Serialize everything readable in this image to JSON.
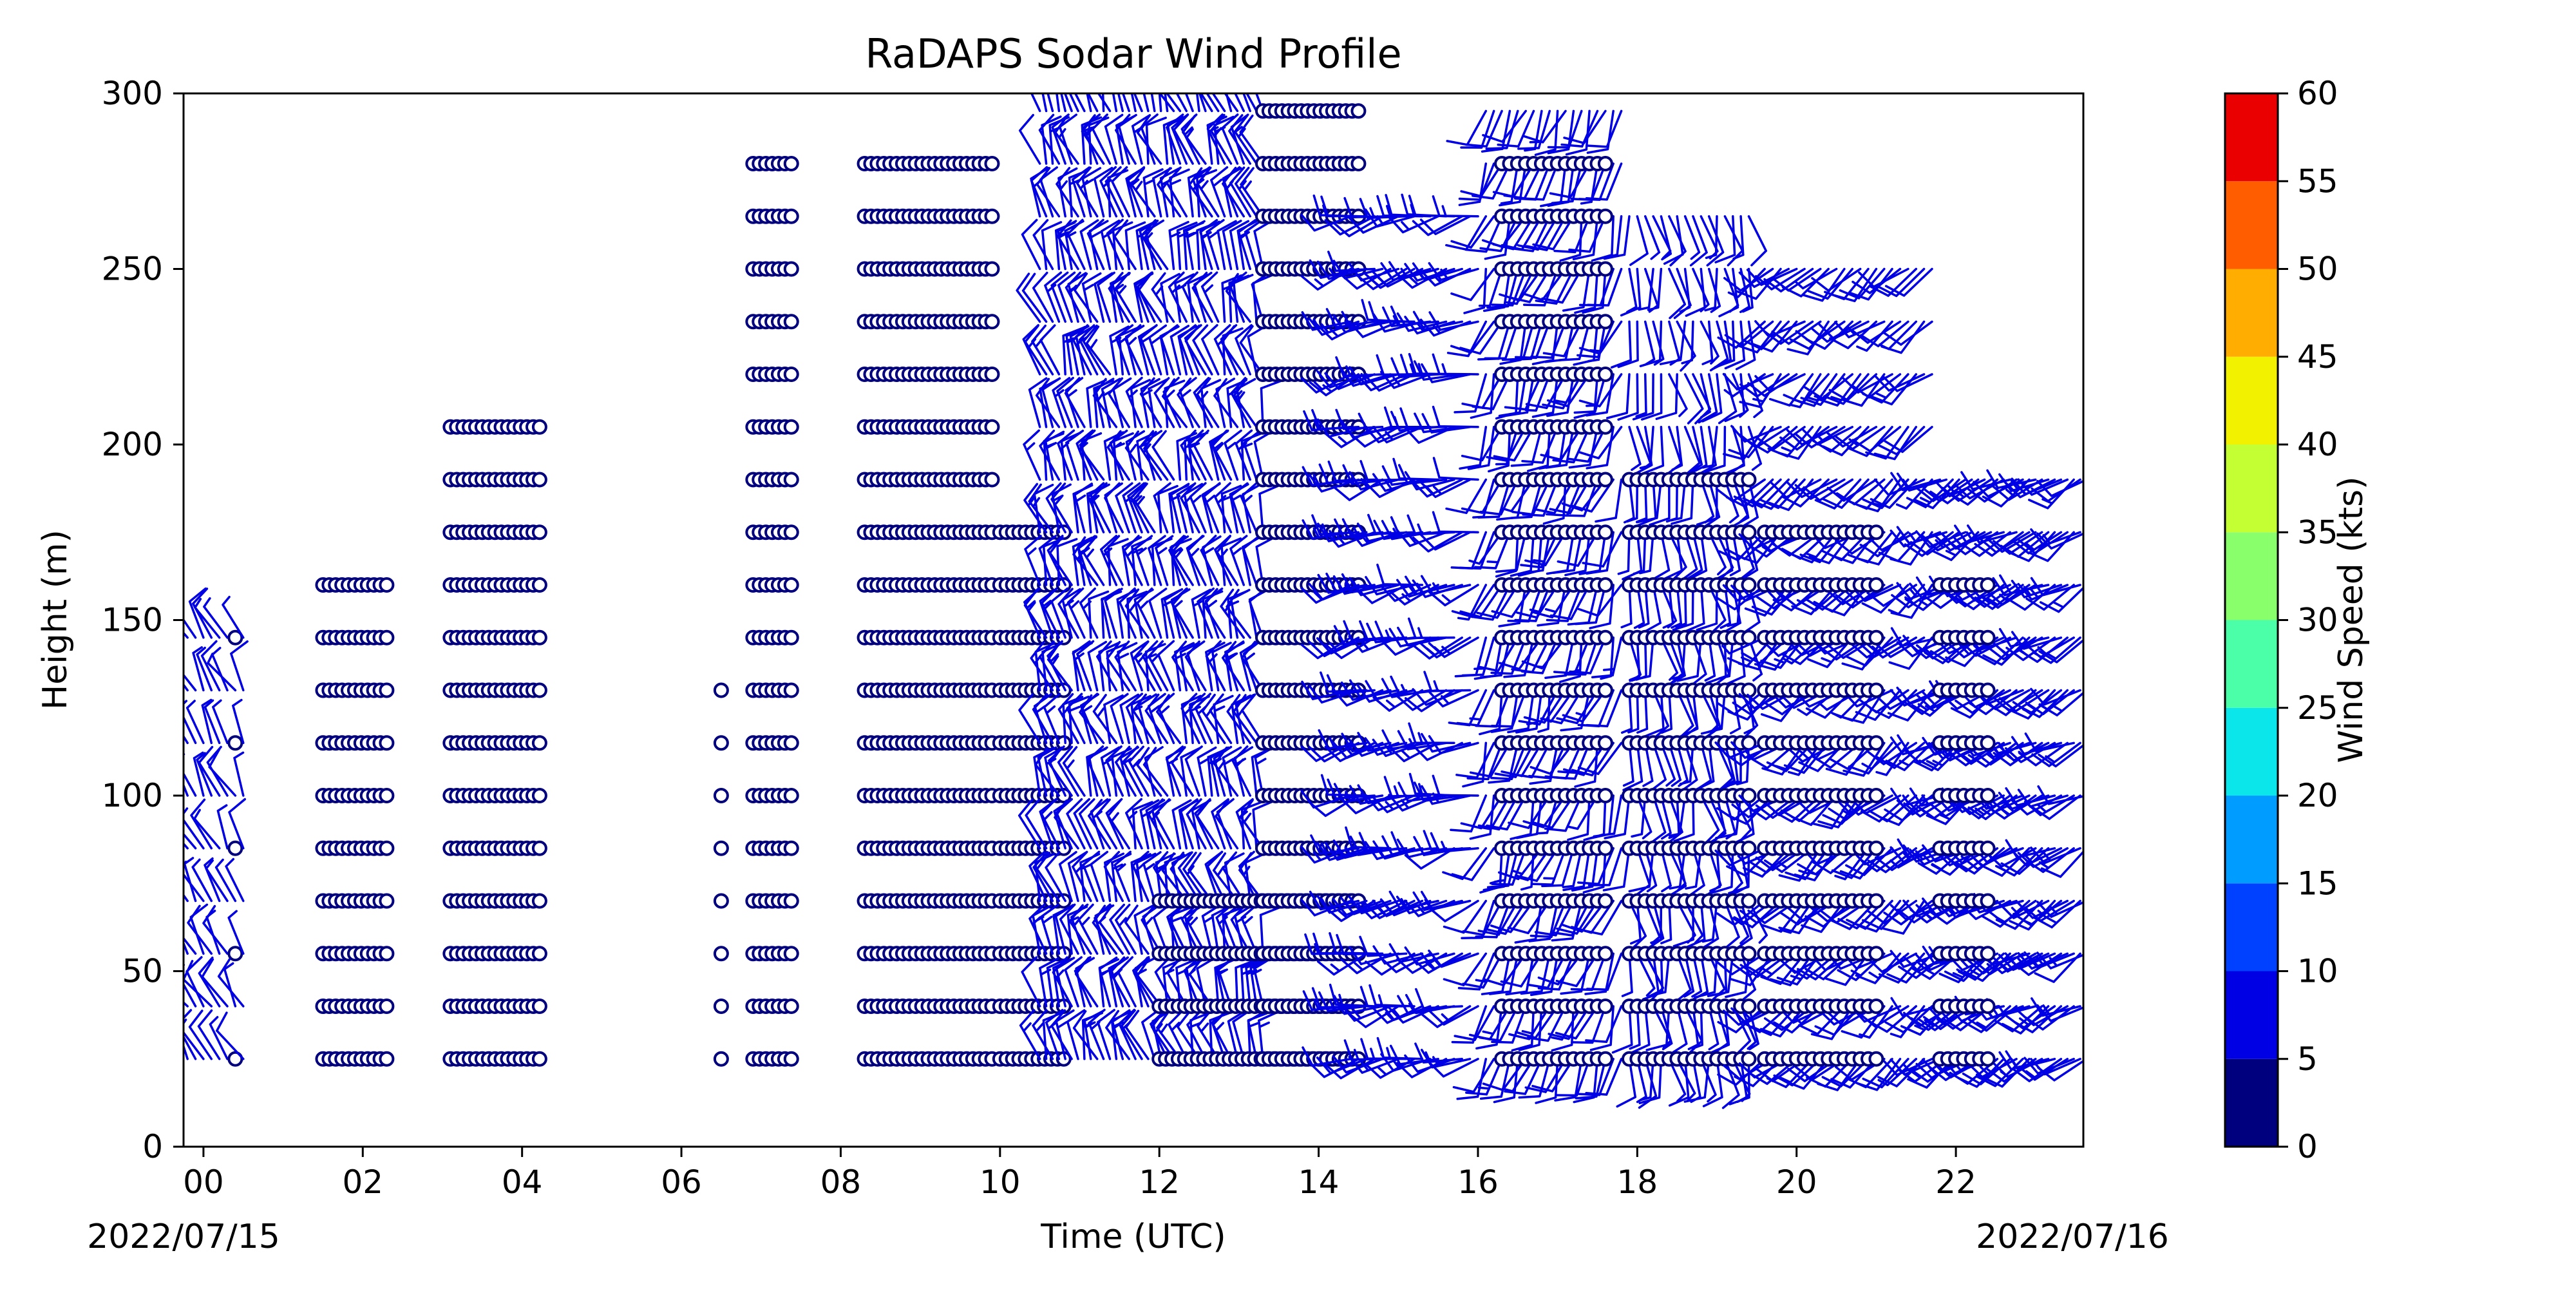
{
  "chart_data": {
    "type": "wind_barbs",
    "title": "RaDAPS Sodar Wind Profile",
    "xlabel": "Time (UTC)",
    "ylabel": "Height (m)",
    "xlim": [
      -0.25,
      23.6
    ],
    "ylim": [
      0,
      300
    ],
    "x_ticks": [
      0,
      2,
      4,
      6,
      8,
      10,
      12,
      14,
      16,
      18,
      20,
      22
    ],
    "x_tick_labels": [
      "00",
      "02",
      "04",
      "06",
      "08",
      "10",
      "12",
      "14",
      "16",
      "18",
      "20",
      "22"
    ],
    "y_ticks": [
      0,
      50,
      100,
      150,
      200,
      250,
      300
    ],
    "date_start_label": "2022/07/15",
    "date_end_label": "2022/07/16",
    "heights_m": [
      25,
      40,
      55,
      70,
      85,
      100,
      115,
      130,
      145,
      160,
      175,
      190,
      205,
      220,
      235,
      250,
      265,
      280,
      295
    ],
    "segments": [
      {
        "from": -0.3,
        "to": 0.5,
        "step": 0.1,
        "top": 145,
        "kind": "barbs",
        "dir": 330,
        "speed": 7,
        "calm_cols": [
          0.4
        ]
      },
      {
        "from": 1.5,
        "to": 2.3,
        "step": 0.08,
        "top": 160,
        "kind": "calm"
      },
      {
        "from": 3.1,
        "to": 4.2,
        "step": 0.08,
        "top": 205,
        "kind": "calm"
      },
      {
        "from": 6.5,
        "to": 6.5,
        "step": 0.1,
        "top": 130,
        "kind": "calm"
      },
      {
        "from": 6.9,
        "to": 7.4,
        "step": 0.08,
        "top": 280,
        "kind": "calm"
      },
      {
        "from": 8.3,
        "to": 9.9,
        "step": 0.08,
        "top": 280,
        "kind": "calm"
      },
      {
        "from": 10.0,
        "to": 10.8,
        "step": 0.08,
        "top": 175,
        "kind": "calm"
      },
      {
        "from": 10.5,
        "to": 13.3,
        "step": 0.08,
        "top": 295,
        "kind": "barbs",
        "dir": 340,
        "speed": 12
      },
      {
        "from": 12.0,
        "to": 14.4,
        "step": 0.08,
        "top": 70,
        "kind": "calm"
      },
      {
        "from": 13.3,
        "to": 14.5,
        "step": 0.08,
        "top": 295,
        "kind": "calm"
      },
      {
        "from": 14.4,
        "to": 16.0,
        "step": 0.1,
        "top": 265,
        "kind": "barbs",
        "dir": 255,
        "speed": 12
      },
      {
        "from": 16.1,
        "to": 17.8,
        "step": 0.1,
        "top": 300,
        "kind": "barbs",
        "dir": 200,
        "speed": 10
      },
      {
        "from": 16.3,
        "to": 17.6,
        "step": 0.1,
        "top": 280,
        "kind": "calm"
      },
      {
        "from": 17.9,
        "to": 19.4,
        "step": 0.1,
        "top": 265,
        "kind": "barbs",
        "dir": 170,
        "speed": 8
      },
      {
        "from": 17.9,
        "to": 19.4,
        "step": 0.1,
        "top": 190,
        "kind": "calm"
      },
      {
        "from": 19.6,
        "to": 21.7,
        "step": 0.1,
        "top": 250,
        "kind": "barbs",
        "dir": 230,
        "speed": 10
      },
      {
        "from": 19.6,
        "to": 21.0,
        "step": 0.1,
        "top": 175,
        "kind": "calm"
      },
      {
        "from": 21.8,
        "to": 23.6,
        "step": 0.08,
        "top": 190,
        "kind": "barbs",
        "dir": 240,
        "speed": 12
      },
      {
        "from": 21.8,
        "to": 22.4,
        "step": 0.1,
        "top": 160,
        "kind": "calm"
      }
    ],
    "colorbar": {
      "label": "Wind Speed (kts)",
      "min": 0,
      "max": 60,
      "ticks": [
        0,
        5,
        10,
        15,
        20,
        25,
        30,
        35,
        40,
        45,
        50,
        55,
        60
      ],
      "colors": [
        "#00007f",
        "#0000e4",
        "#0040ff",
        "#009cff",
        "#0ae6ea",
        "#4bffa9",
        "#8aff6c",
        "#c4ff33",
        "#f2f200",
        "#ffad00",
        "#ff5d00",
        "#ea0000",
        "#7f0000"
      ]
    },
    "barb_color": "#0000e4",
    "calm_marker_color": "#00007f"
  }
}
